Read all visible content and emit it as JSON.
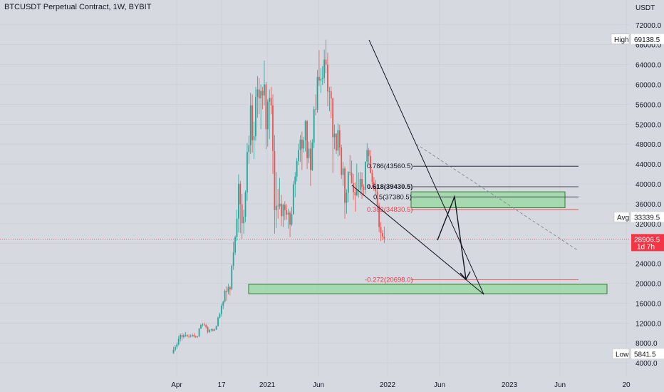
{
  "header": {
    "title": "BTCUSDT Perpetual Contract, 1W, BYBIT"
  },
  "axis": {
    "currency": "USDT",
    "price_ticks": [
      4000,
      8000,
      12000,
      16000,
      20000,
      24000,
      28000,
      32000,
      36000,
      40000,
      44000,
      48000,
      52000,
      56000,
      60000,
      64000,
      68000,
      72000
    ],
    "time_labels": [
      "Apr",
      "17",
      "2021",
      "Jun",
      "2022",
      "Jun",
      "2023",
      "Jun",
      "20"
    ]
  },
  "colors": {
    "up": "#26a69a",
    "down": "#ef5350",
    "zone_fill": "#9ed8a6",
    "zone_stroke": "#2e7d32",
    "current_price": "#f23645",
    "fib_red": "#f23645",
    "fib_black": "#131722"
  },
  "price_tags": {
    "high": {
      "label": "High",
      "value": "69138.5",
      "price": 69138.5
    },
    "avg": {
      "label": "Avg",
      "value": "33339.5",
      "price": 33339.5
    },
    "current": {
      "value": "28906.5",
      "countdown": "1d 7h",
      "price": 28906.5
    },
    "low": {
      "label": "Low",
      "value": "5841.5",
      "price": 5841.5
    }
  },
  "fib_labels": [
    {
      "text": "0.786(43560.5)",
      "price": 43560.5,
      "color": "black"
    },
    {
      "text": "0.618(39430.5)",
      "price": 39430.5,
      "color": "black"
    },
    {
      "text": "0.5(37380.5)",
      "price": 37380.5,
      "color": "black"
    },
    {
      "text": "0.382(34830.5)",
      "price": 34830.5,
      "color": "red"
    },
    {
      "text": "-0.272(20698.0)",
      "price": 20698.0,
      "color": "red"
    }
  ],
  "zones": [
    {
      "name": "upper-resistance-zone",
      "top_price": 38400,
      "bottom_price": 35200
    },
    {
      "name": "lower-support-zone",
      "top_price": 19800,
      "bottom_price": 17900
    }
  ],
  "chart_data": {
    "type": "candlestick",
    "title": "BTCUSDT Perpetual Contract, 1W, BYBIT",
    "ylabel": "USDT",
    "ylim": [
      2000,
      76000
    ],
    "series": [
      {
        "name": "BTCUSDT",
        "values": [
          {
            "o": 5900,
            "h": 7200,
            "l": 5800,
            "c": 6600
          },
          {
            "o": 6600,
            "h": 7600,
            "l": 6300,
            "c": 7200
          },
          {
            "o": 7200,
            "h": 8100,
            "l": 6800,
            "c": 7700
          },
          {
            "o": 7700,
            "h": 9400,
            "l": 7500,
            "c": 8800
          },
          {
            "o": 8800,
            "h": 9900,
            "l": 8300,
            "c": 9600
          },
          {
            "o": 9600,
            "h": 10000,
            "l": 8500,
            "c": 9200
          },
          {
            "o": 9200,
            "h": 9900,
            "l": 8900,
            "c": 9500
          },
          {
            "o": 9500,
            "h": 10200,
            "l": 9200,
            "c": 9600
          },
          {
            "o": 9600,
            "h": 9800,
            "l": 9100,
            "c": 9400
          },
          {
            "o": 9400,
            "h": 9700,
            "l": 9000,
            "c": 9300
          },
          {
            "o": 9300,
            "h": 9700,
            "l": 9100,
            "c": 9400
          },
          {
            "o": 9400,
            "h": 9900,
            "l": 9200,
            "c": 9600
          },
          {
            "o": 9600,
            "h": 10000,
            "l": 9100,
            "c": 9300
          },
          {
            "o": 9300,
            "h": 9500,
            "l": 9000,
            "c": 9200
          },
          {
            "o": 9200,
            "h": 9400,
            "l": 9000,
            "c": 9300
          },
          {
            "o": 9300,
            "h": 11000,
            "l": 9200,
            "c": 10900
          },
          {
            "o": 10900,
            "h": 11800,
            "l": 10800,
            "c": 11600
          },
          {
            "o": 11600,
            "h": 12000,
            "l": 11300,
            "c": 11700
          },
          {
            "o": 11700,
            "h": 12100,
            "l": 11400,
            "c": 11600
          },
          {
            "o": 11600,
            "h": 11800,
            "l": 10900,
            "c": 11200
          },
          {
            "o": 11200,
            "h": 11400,
            "l": 9900,
            "c": 10200
          },
          {
            "o": 10200,
            "h": 10800,
            "l": 10000,
            "c": 10600
          },
          {
            "o": 10600,
            "h": 10900,
            "l": 10300,
            "c": 10700
          },
          {
            "o": 10700,
            "h": 10900,
            "l": 10300,
            "c": 10500
          },
          {
            "o": 10500,
            "h": 10900,
            "l": 10400,
            "c": 10700
          },
          {
            "o": 10700,
            "h": 11500,
            "l": 10600,
            "c": 11400
          },
          {
            "o": 11400,
            "h": 13300,
            "l": 11300,
            "c": 13100
          },
          {
            "o": 13100,
            "h": 14100,
            "l": 12900,
            "c": 13800
          },
          {
            "o": 13800,
            "h": 15900,
            "l": 13300,
            "c": 15500
          },
          {
            "o": 15500,
            "h": 16500,
            "l": 14800,
            "c": 16300
          },
          {
            "o": 16300,
            "h": 18800,
            "l": 16100,
            "c": 18500
          },
          {
            "o": 18500,
            "h": 19400,
            "l": 16500,
            "c": 18300
          },
          {
            "o": 18300,
            "h": 19900,
            "l": 17800,
            "c": 19200
          },
          {
            "o": 19200,
            "h": 19500,
            "l": 17600,
            "c": 18800
          },
          {
            "o": 18800,
            "h": 23800,
            "l": 18600,
            "c": 23500
          },
          {
            "o": 23500,
            "h": 28400,
            "l": 22700,
            "c": 26200
          },
          {
            "o": 26200,
            "h": 29600,
            "l": 25700,
            "c": 29300
          },
          {
            "o": 29300,
            "h": 34800,
            "l": 28500,
            "c": 33000
          },
          {
            "o": 33000,
            "h": 41900,
            "l": 30200,
            "c": 40000
          },
          {
            "o": 40000,
            "h": 40600,
            "l": 30100,
            "c": 35900
          },
          {
            "o": 35900,
            "h": 38000,
            "l": 28800,
            "c": 32100
          },
          {
            "o": 32100,
            "h": 34800,
            "l": 30000,
            "c": 33400
          },
          {
            "o": 33400,
            "h": 38700,
            "l": 32300,
            "c": 38300
          },
          {
            "o": 38300,
            "h": 48200,
            "l": 36600,
            "c": 46400
          },
          {
            "o": 46400,
            "h": 49700,
            "l": 44000,
            "c": 47800
          },
          {
            "o": 47800,
            "h": 58300,
            "l": 46000,
            "c": 55800
          },
          {
            "o": 55800,
            "h": 58000,
            "l": 46300,
            "c": 48800
          },
          {
            "o": 48800,
            "h": 52500,
            "l": 45000,
            "c": 49600
          },
          {
            "o": 49600,
            "h": 59500,
            "l": 48700,
            "c": 57500
          },
          {
            "o": 57500,
            "h": 61700,
            "l": 53300,
            "c": 59000
          },
          {
            "o": 59000,
            "h": 61300,
            "l": 54000,
            "c": 57200
          },
          {
            "o": 57200,
            "h": 60000,
            "l": 51000,
            "c": 58700
          },
          {
            "o": 58700,
            "h": 59500,
            "l": 55000,
            "c": 57800
          },
          {
            "o": 57800,
            "h": 64800,
            "l": 55800,
            "c": 60000
          },
          {
            "o": 60000,
            "h": 60500,
            "l": 47000,
            "c": 51000
          },
          {
            "o": 51000,
            "h": 57000,
            "l": 47500,
            "c": 56500
          },
          {
            "o": 56500,
            "h": 59000,
            "l": 49000,
            "c": 57300
          },
          {
            "o": 57300,
            "h": 59500,
            "l": 54000,
            "c": 55800
          },
          {
            "o": 55800,
            "h": 58000,
            "l": 42000,
            "c": 46600
          },
          {
            "o": 46600,
            "h": 49800,
            "l": 30000,
            "c": 34700
          },
          {
            "o": 34700,
            "h": 42400,
            "l": 31100,
            "c": 35600
          },
          {
            "o": 35600,
            "h": 39000,
            "l": 33000,
            "c": 35500
          },
          {
            "o": 35500,
            "h": 41200,
            "l": 34900,
            "c": 36000
          },
          {
            "o": 36000,
            "h": 37800,
            "l": 31500,
            "c": 33500
          },
          {
            "o": 33500,
            "h": 36000,
            "l": 31300,
            "c": 35800
          },
          {
            "o": 35800,
            "h": 36500,
            "l": 32700,
            "c": 34700
          },
          {
            "o": 34700,
            "h": 35900,
            "l": 32800,
            "c": 33800
          },
          {
            "o": 33800,
            "h": 35000,
            "l": 31000,
            "c": 34200
          },
          {
            "o": 34200,
            "h": 34600,
            "l": 29300,
            "c": 31800
          },
          {
            "o": 31800,
            "h": 35400,
            "l": 31500,
            "c": 33900
          },
          {
            "o": 33900,
            "h": 40600,
            "l": 33800,
            "c": 39900
          },
          {
            "o": 39900,
            "h": 42400,
            "l": 37300,
            "c": 41500
          },
          {
            "o": 41500,
            "h": 45200,
            "l": 40500,
            "c": 44600
          },
          {
            "o": 44600,
            "h": 48100,
            "l": 43800,
            "c": 46800
          },
          {
            "o": 46800,
            "h": 49800,
            "l": 44400,
            "c": 48900
          },
          {
            "o": 48900,
            "h": 50500,
            "l": 42800,
            "c": 47100
          },
          {
            "o": 47100,
            "h": 49500,
            "l": 46300,
            "c": 48800
          },
          {
            "o": 48800,
            "h": 52900,
            "l": 46500,
            "c": 52600
          },
          {
            "o": 52600,
            "h": 52900,
            "l": 43000,
            "c": 45200
          },
          {
            "o": 45200,
            "h": 48500,
            "l": 44200,
            "c": 47100
          },
          {
            "o": 47100,
            "h": 48800,
            "l": 39600,
            "c": 42800
          },
          {
            "o": 42800,
            "h": 49000,
            "l": 42600,
            "c": 48300
          },
          {
            "o": 48300,
            "h": 55600,
            "l": 47200,
            "c": 55000
          },
          {
            "o": 55000,
            "h": 58000,
            "l": 53800,
            "c": 54900
          },
          {
            "o": 54900,
            "h": 62900,
            "l": 54300,
            "c": 61500
          },
          {
            "o": 61500,
            "h": 66900,
            "l": 59700,
            "c": 60800
          },
          {
            "o": 60800,
            "h": 63300,
            "l": 58300,
            "c": 61100
          },
          {
            "o": 61100,
            "h": 63700,
            "l": 59900,
            "c": 61300
          },
          {
            "o": 61300,
            "h": 67000,
            "l": 60200,
            "c": 65000
          },
          {
            "o": 65000,
            "h": 69000,
            "l": 62300,
            "c": 64000
          },
          {
            "o": 64000,
            "h": 66400,
            "l": 55600,
            "c": 58600
          },
          {
            "o": 58600,
            "h": 59500,
            "l": 54600,
            "c": 58600
          },
          {
            "o": 58600,
            "h": 59600,
            "l": 53200,
            "c": 57200
          },
          {
            "o": 57200,
            "h": 57400,
            "l": 42200,
            "c": 49400
          },
          {
            "o": 49400,
            "h": 51900,
            "l": 47000,
            "c": 50100
          },
          {
            "o": 50100,
            "h": 50200,
            "l": 46000,
            "c": 46700
          },
          {
            "o": 46700,
            "h": 52100,
            "l": 45500,
            "c": 50800
          },
          {
            "o": 50800,
            "h": 51900,
            "l": 45700,
            "c": 47300
          },
          {
            "o": 47300,
            "h": 47900,
            "l": 41000,
            "c": 41800
          },
          {
            "o": 41800,
            "h": 44400,
            "l": 39600,
            "c": 43100
          },
          {
            "o": 43100,
            "h": 43500,
            "l": 33000,
            "c": 36200
          },
          {
            "o": 36200,
            "h": 38900,
            "l": 34000,
            "c": 38200
          },
          {
            "o": 38200,
            "h": 42600,
            "l": 36300,
            "c": 42400
          },
          {
            "o": 42400,
            "h": 45800,
            "l": 41700,
            "c": 42200
          },
          {
            "o": 42200,
            "h": 44700,
            "l": 40100,
            "c": 40100
          },
          {
            "o": 40100,
            "h": 42000,
            "l": 36800,
            "c": 38300
          },
          {
            "o": 38300,
            "h": 40300,
            "l": 34400,
            "c": 37700
          },
          {
            "o": 37700,
            "h": 44100,
            "l": 37500,
            "c": 38800
          },
          {
            "o": 38800,
            "h": 42300,
            "l": 37200,
            "c": 38800
          },
          {
            "o": 38800,
            "h": 42400,
            "l": 37800,
            "c": 41000
          },
          {
            "o": 41000,
            "h": 42300,
            "l": 37000,
            "c": 39400
          },
          {
            "o": 39400,
            "h": 39900,
            "l": 37600,
            "c": 38800
          },
          {
            "o": 38800,
            "h": 44000,
            "l": 37900,
            "c": 44500
          },
          {
            "o": 44500,
            "h": 48200,
            "l": 44000,
            "c": 46800
          },
          {
            "o": 46800,
            "h": 47200,
            "l": 44200,
            "c": 45600
          },
          {
            "o": 45600,
            "h": 46800,
            "l": 42100,
            "c": 42200
          },
          {
            "o": 42200,
            "h": 42900,
            "l": 39300,
            "c": 40300
          },
          {
            "o": 40300,
            "h": 41400,
            "l": 38600,
            "c": 39500
          },
          {
            "o": 39500,
            "h": 40800,
            "l": 37600,
            "c": 38500
          },
          {
            "o": 38500,
            "h": 40000,
            "l": 35600,
            "c": 35700
          },
          {
            "o": 35700,
            "h": 36200,
            "l": 30300,
            "c": 31300
          },
          {
            "o": 31300,
            "h": 32300,
            "l": 28500,
            "c": 30100
          },
          {
            "o": 30100,
            "h": 30700,
            "l": 28700,
            "c": 29400
          },
          {
            "o": 29400,
            "h": 31400,
            "l": 28100,
            "c": 28900
          }
        ]
      }
    ]
  }
}
